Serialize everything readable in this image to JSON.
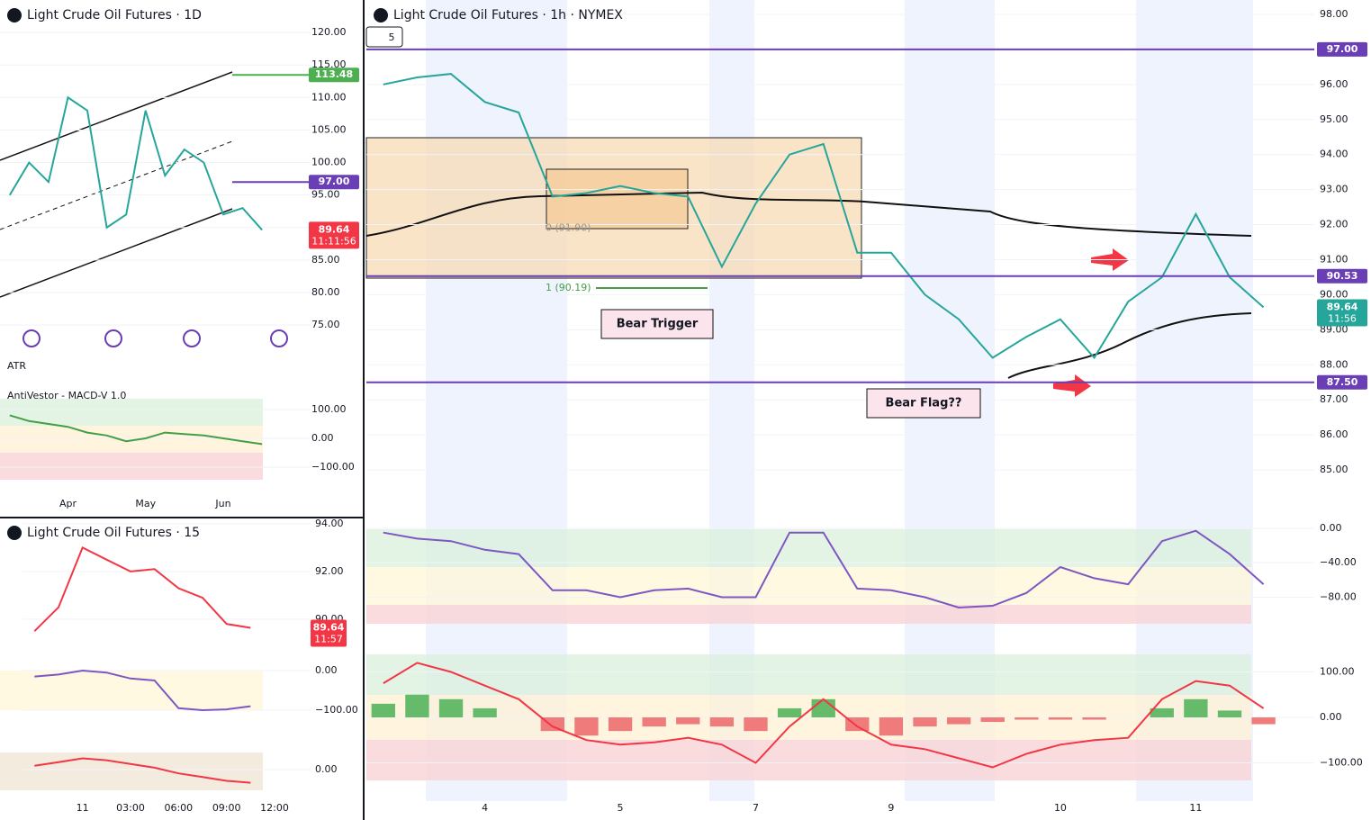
{
  "chart_data": [
    {
      "type": "line",
      "title": "Light Crude Oil Futures · 1h · NYMEX",
      "toolbar": "5",
      "categories": [
        null,
        null,
        null,
        "4",
        null,
        null,
        null,
        "5",
        null,
        null,
        null,
        "7",
        null,
        null,
        null,
        "9",
        null,
        null,
        null,
        null,
        "10",
        null,
        null,
        null,
        "11",
        null,
        null,
        null
      ],
      "values": [
        96.0,
        96.2,
        96.3,
        95.5,
        95.2,
        92.8,
        92.9,
        93.1,
        92.9,
        92.8,
        90.8,
        92.6,
        94.0,
        94.3,
        91.2,
        91.2,
        90.0,
        89.3,
        88.2,
        88.8,
        89.3,
        88.2,
        89.8,
        90.5,
        92.3,
        90.5,
        89.64,
        null
      ],
      "color": "#26a69a",
      "ylim": [
        84.54,
        98.41
      ],
      "yticks": [
        {
          "value": 98,
          "label": "98.00"
        },
        {
          "value": 97,
          "label": "97.00"
        },
        {
          "value": 96,
          "label": "96.00"
        },
        {
          "value": 95,
          "label": "95.00"
        },
        {
          "value": 94,
          "label": "94.00"
        },
        {
          "value": 93,
          "label": "93.00"
        },
        {
          "value": 92,
          "label": "92.00"
        },
        {
          "value": 91,
          "label": "91.00"
        },
        {
          "value": 90,
          "label": "90.00"
        },
        {
          "value": 89,
          "label": "89.00"
        },
        {
          "value": 88,
          "label": "88.00"
        },
        {
          "value": 87,
          "label": "87.00"
        },
        {
          "value": 86,
          "label": "86.00"
        },
        {
          "value": 85,
          "label": "85.00"
        }
      ],
      "price_lines": [
        {
          "value": 97,
          "label": "97.00",
          "color": "#6a3fb5"
        },
        {
          "value": 90.53,
          "label": "90.53",
          "color": "#6a3fb5"
        },
        {
          "value": 87.5,
          "label": "87.50",
          "color": "#6a3fb5"
        }
      ],
      "last_price": {
        "value": 89.64,
        "label": "89.64",
        "countdown": "11:56",
        "color": "#26a69a"
      },
      "fib_labels": [
        {
          "value": 91.9,
          "label": "0 (91.90)"
        },
        {
          "value": 90.19,
          "label": "1 (90.19)"
        }
      ],
      "annotations": [
        "Bear Trigger",
        "Bear Flag??"
      ]
    },
    {
      "type": "line",
      "values": [
        -5,
        -12,
        -15,
        -25,
        -30,
        -72,
        -72,
        -80,
        -72,
        -70,
        -80,
        -80,
        -5,
        -5,
        -70,
        -72,
        -80,
        -92,
        -90,
        -75,
        -45,
        -58,
        -65,
        -15,
        -3,
        -30,
        -65,
        null
      ],
      "color": "#7e57c2",
      "ylim": [
        -128.6,
        12.4
      ],
      "yticks": [
        {
          "value": 0,
          "label": "0.00"
        },
        {
          "value": -40,
          "label": "−40.00"
        },
        {
          "value": -80,
          "label": "−80.00"
        }
      ]
    },
    {
      "type": "macd",
      "values": [
        75,
        120,
        100,
        70,
        40,
        -20,
        -50,
        -60,
        -55,
        -45,
        -60,
        -100,
        -20,
        40,
        -20,
        -60,
        -70,
        -90,
        -110,
        -80,
        -60,
        -50,
        -45,
        40,
        80,
        70,
        20,
        null
      ],
      "histogram": [
        30,
        50,
        40,
        20,
        0,
        -30,
        -40,
        -30,
        -20,
        -15,
        -20,
        -30,
        20,
        40,
        -30,
        -40,
        -20,
        -15,
        -10,
        -5,
        -5,
        -5,
        0,
        20,
        40,
        15,
        -15,
        null
      ],
      "color": "#f23645",
      "up_color": "#66bb6a",
      "down_color": "#ef7b7b",
      "ylim": [
        -144.6,
        142.6
      ],
      "yticks": [
        {
          "value": 100,
          "label": "100.00"
        },
        {
          "value": 0,
          "label": "0.00"
        },
        {
          "value": -100,
          "label": "−100.00"
        }
      ]
    },
    {
      "type": "line",
      "title": "Light Crude Oil Futures · 1D",
      "categories": [
        null,
        null,
        null,
        "Apr",
        null,
        null,
        null,
        "May",
        null,
        null,
        null,
        "Jun",
        null,
        null,
        null,
        null
      ],
      "values": [
        95,
        100,
        97,
        110,
        108,
        90,
        92,
        108,
        98,
        102,
        100,
        92,
        93,
        89.64,
        null,
        null
      ],
      "color": "#26a69a",
      "ylim": [
        71,
        125
      ],
      "yticks": [
        {
          "value": 120,
          "label": "120.00"
        },
        {
          "value": 115,
          "label": "115.00"
        },
        {
          "value": 110,
          "label": "110.00"
        },
        {
          "value": 105,
          "label": "105.00"
        },
        {
          "value": 100,
          "label": "100.00"
        },
        {
          "value": 95,
          "label": "95.00"
        },
        {
          "value": 90,
          "label": "90.00"
        },
        {
          "value": 85,
          "label": "85.00"
        },
        {
          "value": 80,
          "label": "80.00"
        },
        {
          "value": 75,
          "label": "75.00"
        }
      ],
      "price_lines": [
        {
          "value": 113.48,
          "label": "113.48",
          "color": "#4caf50"
        },
        {
          "value": 97,
          "label": "97.00",
          "color": "#6a3fb5"
        }
      ],
      "last_price": {
        "value": 89.64,
        "label": "89.64",
        "countdown": "11:11:56",
        "color": "#f23645"
      },
      "indicator_labels": [
        "ATR",
        "AntiVestor - MACD-V 1.0"
      ]
    },
    {
      "type": "line",
      "values": [
        80,
        60,
        50,
        40,
        20,
        10,
        -10,
        0,
        20,
        15,
        10,
        0,
        -10,
        -20,
        null,
        null
      ],
      "color": "#43a047",
      "ylim": [
        -140.6,
        146.9
      ],
      "yticks": [
        {
          "value": 100,
          "label": "100.00"
        },
        {
          "value": 0,
          "label": "0.00"
        },
        {
          "value": -100,
          "label": "−100.00"
        }
      ]
    },
    {
      "type": "line",
      "title": "Light Crude Oil Futures · 15",
      "categories": [
        null,
        null,
        "11",
        null,
        "03:00",
        null,
        "06:00",
        null,
        "09:00",
        null,
        "12:00",
        null
      ],
      "values": [
        89.5,
        90.5,
        93.0,
        92.5,
        92.0,
        92.1,
        91.3,
        90.9,
        89.8,
        89.64,
        null,
        null
      ],
      "color": "#f23645",
      "ylim": [
        88.79,
        94.26
      ],
      "yticks": [
        {
          "value": 94,
          "label": "94.00"
        },
        {
          "value": 92,
          "label": "92.00"
        },
        {
          "value": 90,
          "label": "90.00"
        }
      ],
      "last_price": {
        "value": 89.64,
        "label": "89.64",
        "countdown": "11:57",
        "color": "#f23645"
      }
    },
    {
      "type": "line",
      "values": [
        -15,
        -10,
        0,
        -5,
        -20,
        -25,
        -95,
        -100,
        -98,
        -90,
        null,
        null
      ],
      "color": "#7e57c2",
      "ylim": [
        -115.9,
        16
      ],
      "yticks": [
        {
          "value": 0,
          "label": "0.00"
        },
        {
          "value": -100,
          "label": "−100.00"
        }
      ]
    },
    {
      "type": "line",
      "values": [
        10,
        20,
        30,
        25,
        15,
        5,
        -10,
        -20,
        -30,
        -35,
        null,
        null
      ],
      "color": "#f23645",
      "ylim": [
        -60,
        60
      ],
      "yticks": [
        {
          "value": 0,
          "label": "0.00"
        }
      ]
    }
  ]
}
